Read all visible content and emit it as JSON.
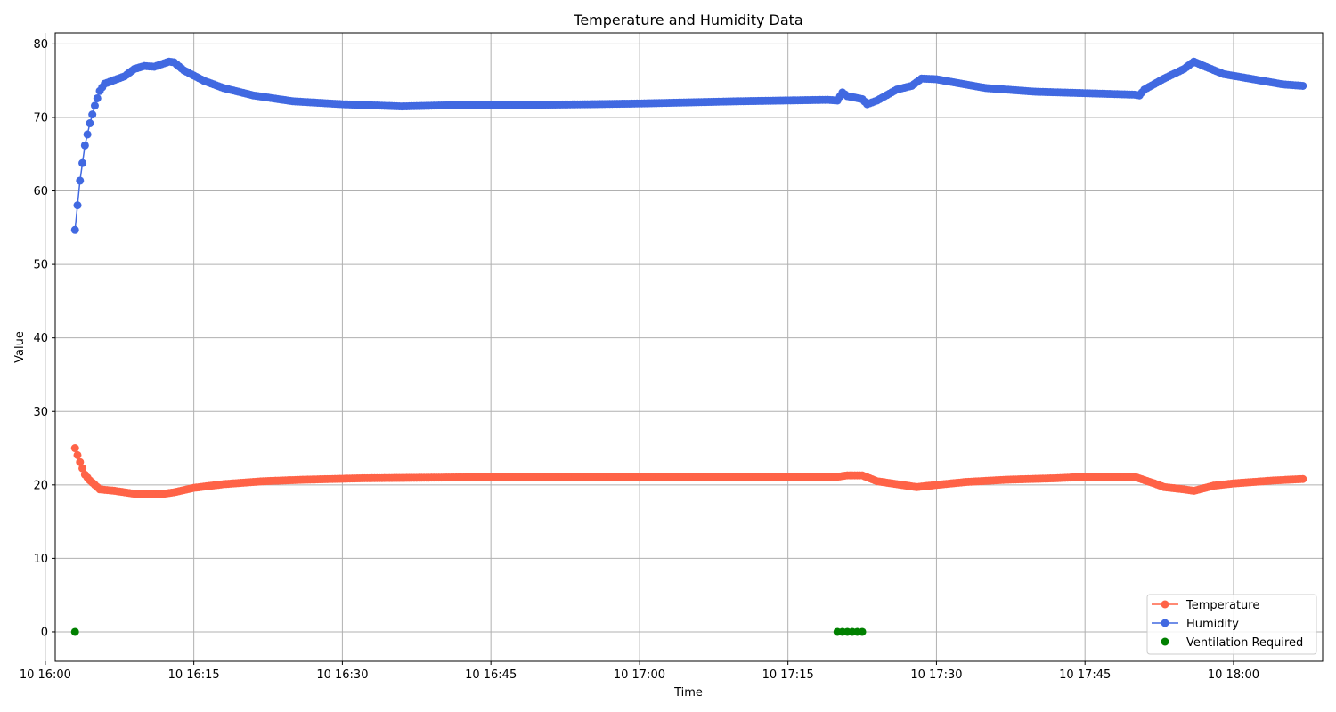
{
  "chart_data": {
    "type": "line",
    "title": "Temperature and Humidity Data",
    "xlabel": "Time",
    "ylabel": "Value",
    "xlim": [
      "16:01:00",
      "18:09:00"
    ],
    "ylim": [
      -4,
      81.5
    ],
    "x_ticks": [
      "16:00",
      "16:15",
      "16:30",
      "16:45",
      "17:00",
      "17:15",
      "17:30",
      "17:45",
      "18:00"
    ],
    "x_tick_labels": [
      "10 16:00",
      "10 16:15",
      "10 16:30",
      "10 16:45",
      "10 17:00",
      "10 17:15",
      "10 17:30",
      "10 17:45",
      "10 18:00"
    ],
    "y_ticks": [
      0,
      10,
      20,
      30,
      40,
      50,
      60,
      70,
      80
    ],
    "grid": true,
    "legend_position": "lower-right",
    "time_range": [
      "16:03",
      "18:07"
    ],
    "series": [
      {
        "name": "Temperature",
        "style": "line-marker",
        "color": "#ff6347",
        "keypoints": [
          [
            "16:03",
            25.0
          ],
          [
            "16:03.5",
            23.1
          ],
          [
            "16:04",
            21.4
          ],
          [
            "16:04.5",
            20.6
          ],
          [
            "16:05",
            20.0
          ],
          [
            "16:05.5",
            19.4
          ],
          [
            "16:07",
            19.2
          ],
          [
            "16:09",
            18.8
          ],
          [
            "16:12",
            18.8
          ],
          [
            "16:13",
            19.0
          ],
          [
            "16:15",
            19.6
          ],
          [
            "16:18",
            20.1
          ],
          [
            "16:22",
            20.5
          ],
          [
            "16:26",
            20.7
          ],
          [
            "16:32",
            20.9
          ],
          [
            "16:40",
            21.0
          ],
          [
            "16:48",
            21.1
          ],
          [
            "17:00",
            21.1
          ],
          [
            "17:20",
            21.1
          ],
          [
            "17:21",
            21.3
          ],
          [
            "17:22.5",
            21.3
          ],
          [
            "17:24",
            20.5
          ],
          [
            "17:26",
            20.1
          ],
          [
            "17:28",
            19.7
          ],
          [
            "17:30",
            20.0
          ],
          [
            "17:33",
            20.4
          ],
          [
            "17:37",
            20.7
          ],
          [
            "17:42",
            20.9
          ],
          [
            "17:45",
            21.1
          ],
          [
            "17:50",
            21.1
          ],
          [
            "17:52",
            20.2
          ],
          [
            "17:53",
            19.7
          ],
          [
            "17:55",
            19.4
          ],
          [
            "17:56",
            19.2
          ],
          [
            "17:58",
            19.9
          ],
          [
            "18:00",
            20.2
          ],
          [
            "18:04",
            20.6
          ],
          [
            "18:07",
            20.8
          ]
        ]
      },
      {
        "name": "Humidity",
        "style": "line-marker",
        "color": "#4169e1",
        "keypoints": [
          [
            "16:03",
            54.7
          ],
          [
            "16:03.5",
            61.4
          ],
          [
            "16:04",
            66.2
          ],
          [
            "16:04.5",
            69.2
          ],
          [
            "16:05",
            71.6
          ],
          [
            "16:05.5",
            73.6
          ],
          [
            "16:06",
            74.6
          ],
          [
            "16:08",
            75.6
          ],
          [
            "16:09",
            76.6
          ],
          [
            "16:10",
            77.0
          ],
          [
            "16:11",
            76.9
          ],
          [
            "16:12.5",
            77.6
          ],
          [
            "16:13",
            77.5
          ],
          [
            "16:14",
            76.4
          ],
          [
            "16:16",
            75.0
          ],
          [
            "16:18",
            74.0
          ],
          [
            "16:21",
            73.0
          ],
          [
            "16:25",
            72.2
          ],
          [
            "16:30",
            71.8
          ],
          [
            "16:36",
            71.5
          ],
          [
            "16:42",
            71.7
          ],
          [
            "16:48",
            71.7
          ],
          [
            "16:55",
            71.8
          ],
          [
            "17:00",
            71.9
          ],
          [
            "17:10",
            72.2
          ],
          [
            "17:19",
            72.4
          ],
          [
            "17:20",
            72.3
          ],
          [
            "17:20.5",
            73.4
          ],
          [
            "17:21",
            72.9
          ],
          [
            "17:22.5",
            72.5
          ],
          [
            "17:23",
            71.8
          ],
          [
            "17:24",
            72.3
          ],
          [
            "17:26",
            73.8
          ],
          [
            "17:27.5",
            74.3
          ],
          [
            "17:28.5",
            75.3
          ],
          [
            "17:30",
            75.2
          ],
          [
            "17:35",
            74.0
          ],
          [
            "17:40",
            73.5
          ],
          [
            "17:45",
            73.3
          ],
          [
            "17:50",
            73.1
          ],
          [
            "17:50.5",
            73.0
          ],
          [
            "17:51",
            73.8
          ],
          [
            "17:53",
            75.3
          ],
          [
            "17:55",
            76.6
          ],
          [
            "17:56",
            77.6
          ],
          [
            "17:57",
            77.0
          ],
          [
            "17:59",
            75.9
          ],
          [
            "18:02",
            75.2
          ],
          [
            "18:05",
            74.5
          ],
          [
            "18:07",
            74.3
          ]
        ]
      },
      {
        "name": "Ventilation Required",
        "style": "scatter",
        "color": "#008000",
        "points": [
          [
            "16:03",
            0
          ],
          [
            "17:20",
            0
          ],
          [
            "17:20.5",
            0
          ],
          [
            "17:21",
            0
          ],
          [
            "17:21.5",
            0
          ],
          [
            "17:22",
            0
          ],
          [
            "17:22.5",
            0
          ]
        ]
      }
    ]
  }
}
